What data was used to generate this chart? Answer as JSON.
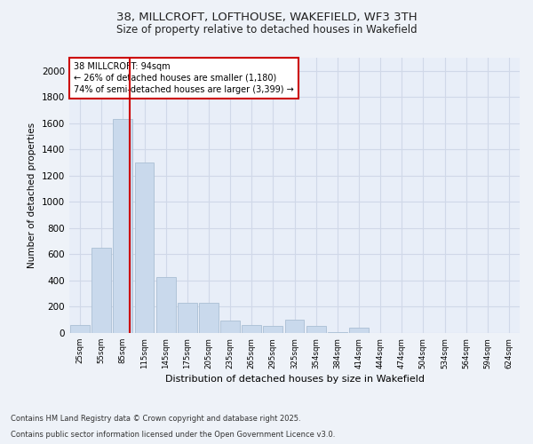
{
  "title_line1": "38, MILLCROFT, LOFTHOUSE, WAKEFIELD, WF3 3TH",
  "title_line2": "Size of property relative to detached houses in Wakefield",
  "xlabel": "Distribution of detached houses by size in Wakefield",
  "ylabel": "Number of detached properties",
  "categories": [
    "25sqm",
    "55sqm",
    "85sqm",
    "115sqm",
    "145sqm",
    "175sqm",
    "205sqm",
    "235sqm",
    "265sqm",
    "295sqm",
    "325sqm",
    "354sqm",
    "384sqm",
    "414sqm",
    "444sqm",
    "474sqm",
    "504sqm",
    "534sqm",
    "564sqm",
    "594sqm",
    "624sqm"
  ],
  "values": [
    60,
    650,
    1630,
    1300,
    430,
    230,
    230,
    95,
    60,
    55,
    100,
    55,
    5,
    40,
    0,
    0,
    0,
    0,
    0,
    0,
    0
  ],
  "bar_color": "#c9d9ec",
  "bar_edge_color": "#aabfd4",
  "ylim": [
    0,
    2100
  ],
  "yticks": [
    0,
    200,
    400,
    600,
    800,
    1000,
    1200,
    1400,
    1600,
    1800,
    2000
  ],
  "grid_color": "#d0d8e8",
  "fig_bg_color": "#eef2f8",
  "plot_bg_color": "#e8eef8",
  "footer_line1": "Contains HM Land Registry data © Crown copyright and database right 2025.",
  "footer_line2": "Contains public sector information licensed under the Open Government Licence v3.0.",
  "red_line_color": "#cc0000",
  "annotation_box_edge_color": "#cc0000",
  "annotation_text_line1": "38 MILLCROFT: 94sqm",
  "annotation_text_line2": "← 26% of detached houses are smaller (1,180)",
  "annotation_text_line3": "74% of semi-detached houses are larger (3,399) →"
}
